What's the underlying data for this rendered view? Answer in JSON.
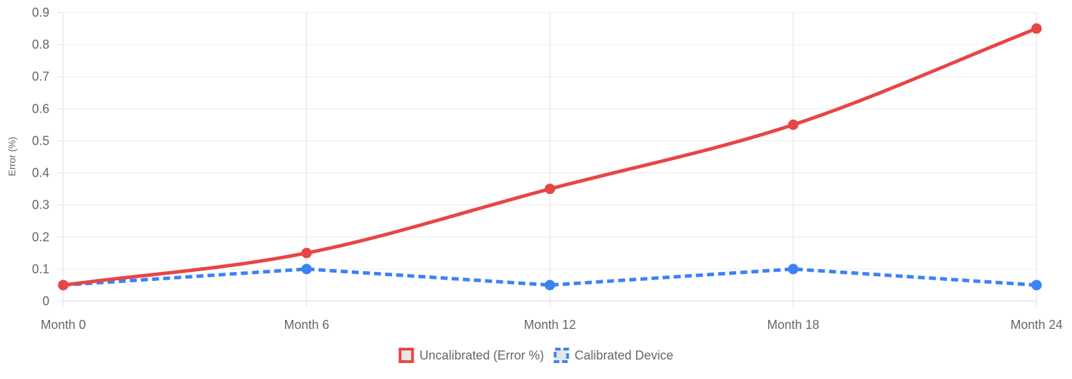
{
  "chart_data": {
    "type": "line",
    "categories": [
      "Month 0",
      "Month 6",
      "Month 12",
      "Month 18",
      "Month 24"
    ],
    "series": [
      {
        "name": "Uncalibrated (Error %)",
        "values": [
          0.05,
          0.15,
          0.35,
          0.55,
          0.85
        ],
        "color": "#e84545",
        "style": "solid",
        "smooth": true
      },
      {
        "name": "Calibrated Device",
        "values": [
          0.05,
          0.1,
          0.05,
          0.1,
          0.05
        ],
        "color": "#3b82f6",
        "style": "dashed",
        "smooth": false
      }
    ],
    "title": "",
    "xlabel": "",
    "ylabel": "Error (%)",
    "ylim": [
      0,
      0.9
    ],
    "yticks": [
      "0",
      "0.1",
      "0.2",
      "0.3",
      "0.4",
      "0.5",
      "0.6",
      "0.7",
      "0.8",
      "0.9"
    ],
    "grid": true,
    "legend_position": "bottom"
  }
}
